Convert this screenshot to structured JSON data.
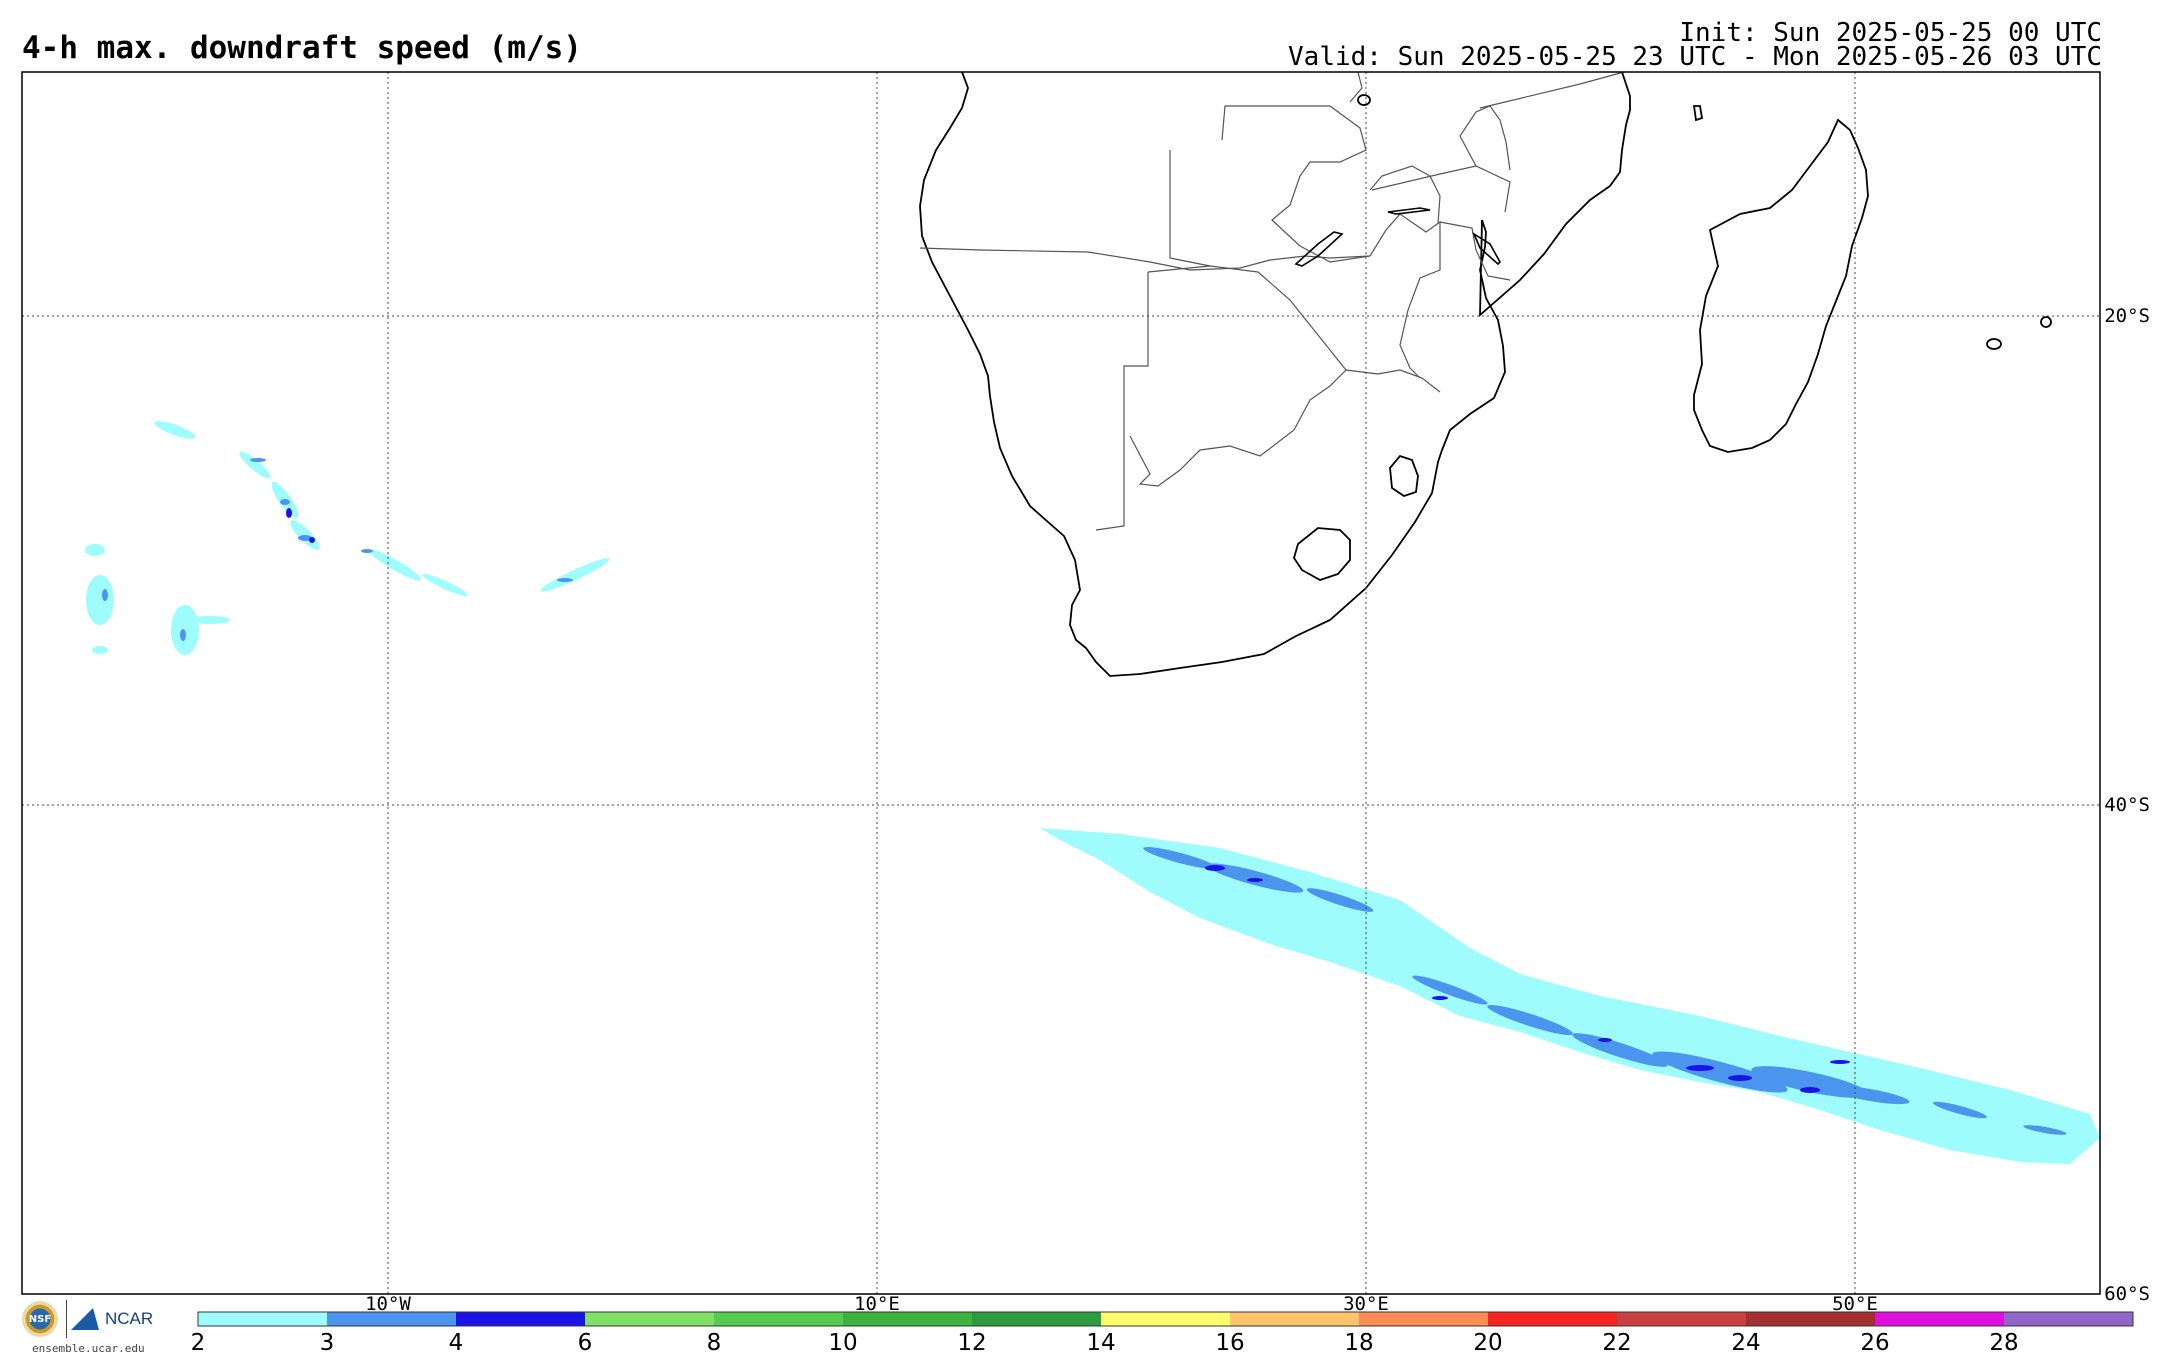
{
  "title": "4-h max. downdraft speed (m/s)",
  "init": "Init: Sun 2025-05-25 00 UTC",
  "valid": "Valid: Sun 2025-05-25 23 UTC - Mon 2025-05-26 03 UTC",
  "map": {
    "lon_range": [
      -25,
      60
    ],
    "lat_range": [
      -60,
      -10
    ],
    "lon_ticks": [
      "10°W",
      "10°E",
      "30°E",
      "50°E"
    ],
    "lat_ticks": [
      "20°S",
      "40°S",
      "60°S"
    ]
  },
  "colorbar": {
    "labels": [
      "2",
      "3",
      "4",
      "6",
      "8",
      "10",
      "12",
      "14",
      "16",
      "18",
      "20",
      "22",
      "24",
      "26",
      "28"
    ],
    "colors": [
      "#9ffcfc",
      "#4c95ef",
      "#1a14e8",
      "#7ee065",
      "#55cc4f",
      "#3eb33b",
      "#2b9b3e",
      "#ffff6e",
      "#ffc46e",
      "#ff8c55",
      "#f52424",
      "#c94040",
      "#a33030",
      "#e00fdc",
      "#9166c8"
    ]
  },
  "logo": {
    "nsf_label": "NSF",
    "ncar_label": "NCAR",
    "site": "ensemble.ucar.edu"
  }
}
